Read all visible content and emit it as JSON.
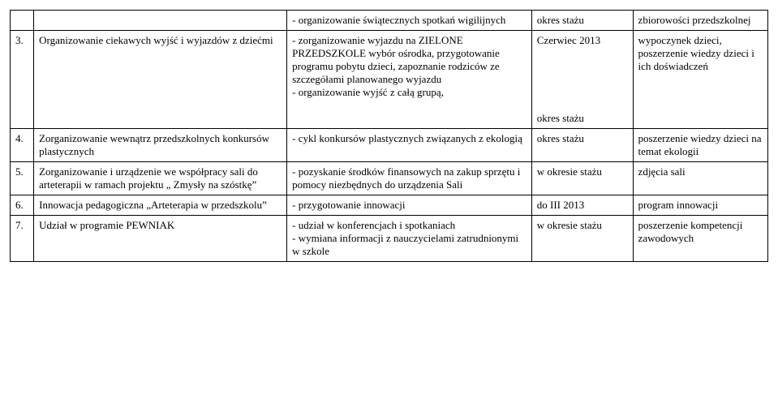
{
  "rows": [
    {
      "num": "",
      "task": "",
      "activity": "- organizowanie świątecznych spotkań wigilijnych",
      "term": "okres stażu",
      "outcome": "zbiorowości przedszkolnej"
    },
    {
      "num": "3.",
      "task": "Organizowanie ciekawych wyjść i wyjazdów z dziećmi",
      "activity": "- zorganizowanie wyjazdu na ZIELONE PRZEDSZKOLE wybór ośrodka, przygotowanie programu pobytu dzieci, zapoznanie rodziców ze szczegółami planowanego wyjazdu\n- organizowanie wyjść z całą grupą,",
      "term": "Czerwiec 2013\n\n\n\n\n\nokres stażu",
      "outcome": "wypoczynek dzieci, poszerzenie wiedzy dzieci i ich doświadczeń"
    },
    {
      "num": "4.",
      "task": "Zorganizowanie wewnątrz przedszkolnych konkursów plastycznych",
      "activity": "- cykl konkursów plastycznych związanych z ekologią",
      "term": "okres stażu",
      "outcome": "poszerzenie wiedzy dzieci na temat ekologii"
    },
    {
      "num": "5.",
      "task": "Zorganizowanie i urządzenie we współpracy sali do arteterapii w ramach projektu „ Zmysły na szóstkę”",
      "activity": "- pozyskanie środków finansowych na zakup sprzętu i pomocy niezbędnych do urządzenia Sali",
      "term": "w okresie stażu",
      "outcome": "zdjęcia sali"
    },
    {
      "num": "6.",
      "task": "Innowacja pedagogiczna „Arteterapia w przedszkolu”",
      "activity": "- przygotowanie innowacji",
      "term": "do III 2013",
      "outcome": "program innowacji"
    },
    {
      "num": "7.",
      "task": "Udział w programie PEWNIAK",
      "activity": "- udział w konferencjach i spotkaniach\n- wymiana informacji z nauczycielami zatrudnionymi w szkole",
      "term": "w okresie stażu",
      "outcome": "poszerzenie kompetencji zawodowych"
    }
  ]
}
